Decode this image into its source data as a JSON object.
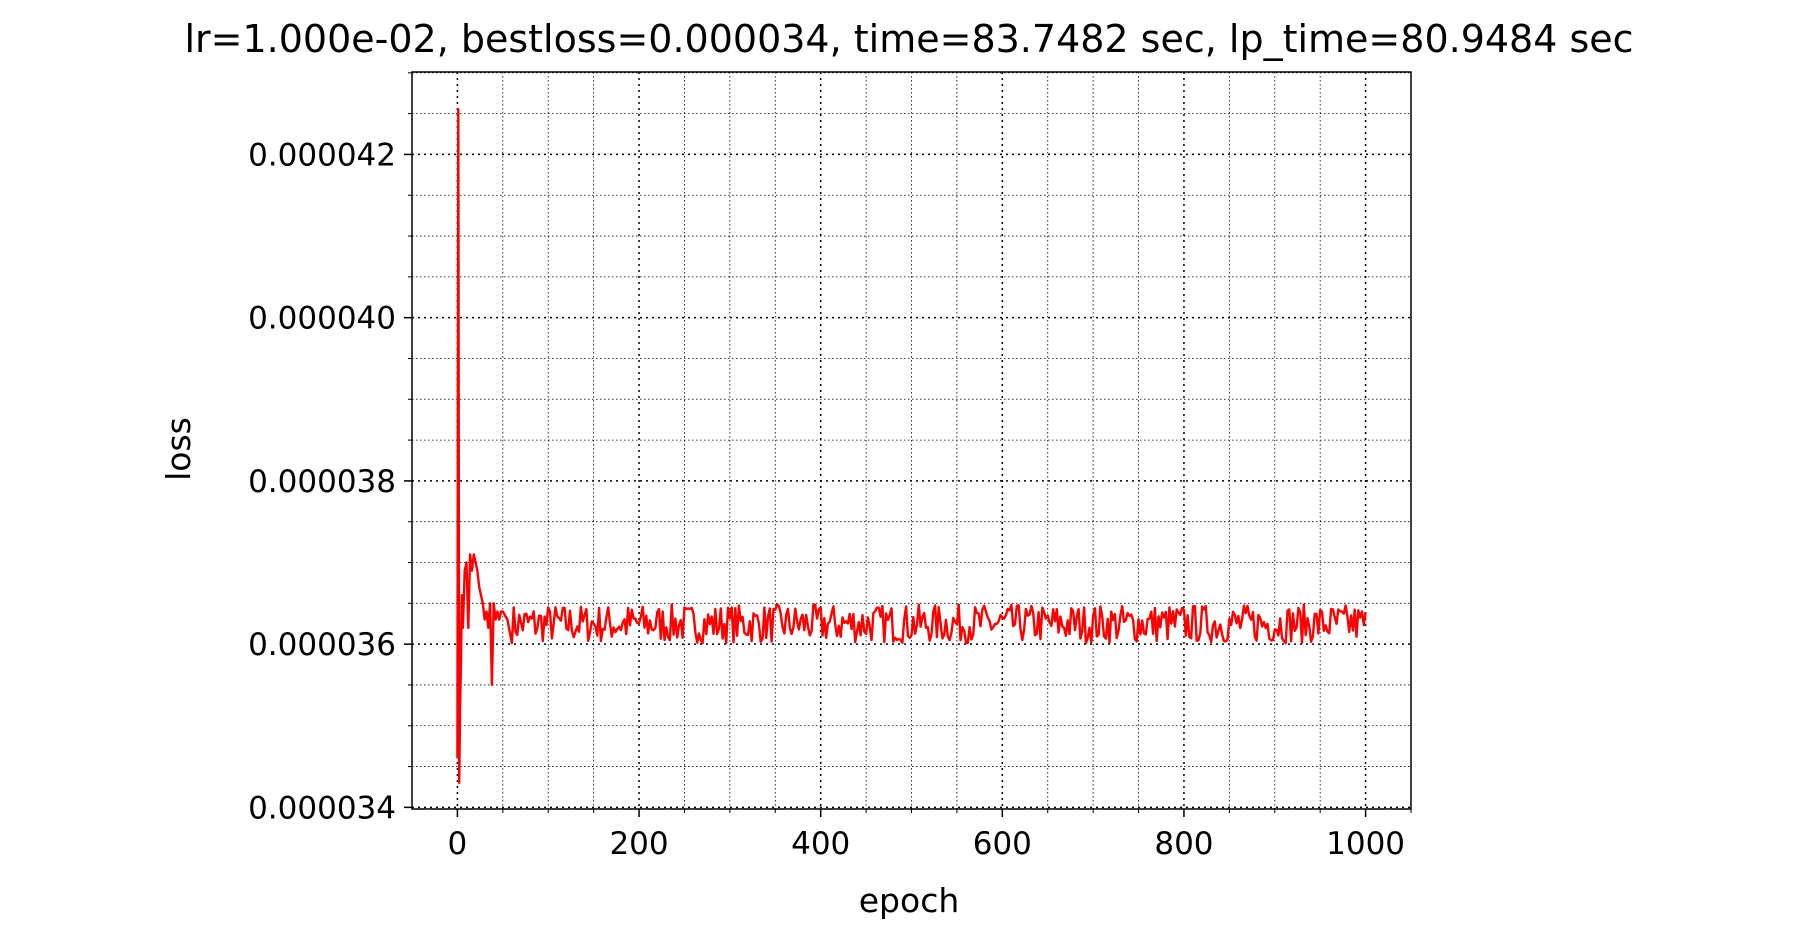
{
  "chart_data": {
    "type": "line",
    "title": "lr=1.000e-02, bestloss=0.000034, time=83.7482 sec, lp_time=80.9484 sec",
    "xlabel": "epoch",
    "ylabel": "loss",
    "xlim": [
      -50,
      1050
    ],
    "ylim": [
      3.398e-05,
      4.301e-05
    ],
    "x_ticks": [
      0,
      200,
      400,
      600,
      800,
      1000
    ],
    "x_tick_labels": [
      "0",
      "200",
      "400",
      "600",
      "800",
      "1000"
    ],
    "x_minor_step": 50,
    "y_ticks": [
      3.4e-05,
      3.6e-05,
      3.8e-05,
      4e-05,
      4.2e-05
    ],
    "y_tick_labels": [
      "0.000034",
      "0.000036",
      "0.000038",
      "0.000040",
      "0.000042"
    ],
    "y_minor_step": 5e-07,
    "grid": "both (dotted, major and minor)",
    "series": [
      {
        "color": "#ff0000",
        "x": [
          0,
          1,
          2,
          3,
          4,
          5,
          6,
          8,
          10,
          12,
          14,
          16,
          18,
          20,
          22,
          24,
          26,
          28,
          30,
          32,
          34,
          36,
          38,
          40,
          42,
          44,
          46,
          48,
          50,
          55,
          60,
          70,
          80,
          90,
          100,
          150,
          200,
          250,
          300,
          350,
          400,
          450,
          500,
          550,
          600,
          650,
          700,
          750,
          800,
          850,
          900,
          950,
          1000
        ],
        "y": [
          3.46e-05,
          4.255e-05,
          3.43e-05,
          3.52e-05,
          3.58e-05,
          3.66e-05,
          3.62e-05,
          3.69e-05,
          3.7e-05,
          3.62e-05,
          3.71e-05,
          3.69e-05,
          3.71e-05,
          3.7e-05,
          3.69e-05,
          3.67e-05,
          3.66e-05,
          3.65e-05,
          3.63e-05,
          3.64e-05,
          3.62e-05,
          3.65e-05,
          3.55e-05,
          3.65e-05,
          3.63e-05,
          3.64e-05,
          3.63e-05,
          3.64e-05,
          3.64e-05,
          3.63e-05,
          3.65e-05,
          3.61e-05,
          3.65e-05,
          3.62e-05,
          3.64e-05,
          3.63e-05,
          3.63e-05,
          3.63e-05,
          3.63e-05,
          3.63e-05,
          3.63e-05,
          3.63e-05,
          3.63e-05,
          3.63e-05,
          3.63e-05,
          3.63e-05,
          3.63e-05,
          3.63e-05,
          3.63e-05,
          3.63e-05,
          3.63e-05,
          3.64e-05,
          3.63e-05
        ],
        "noise_band_from_epoch_60": [
          3.6e-05,
          3.65e-05
        ]
      }
    ]
  }
}
